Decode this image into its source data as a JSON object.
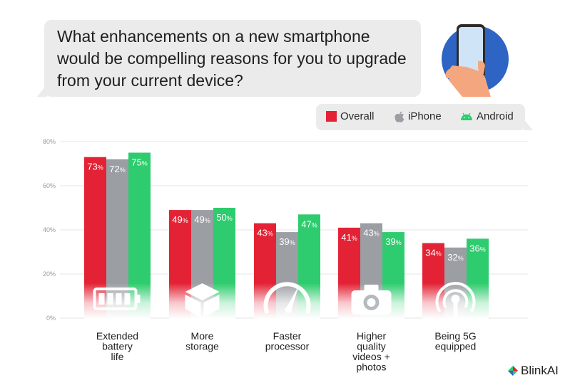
{
  "title": "What enhancements on a new smartphone would be compelling reasons for you to upgrade from your current device?",
  "legend": [
    {
      "label": "Overall",
      "color": "#e32335",
      "icon": "red-square-icon"
    },
    {
      "label": "iPhone",
      "color": "#9b9ea3",
      "icon": "apple-logo-icon"
    },
    {
      "label": "Android",
      "color": "#2ecc6e",
      "icon": "android-logo-icon"
    }
  ],
  "brand": {
    "name": "BlinkAI",
    "icon": "blinkai-logo-icon"
  },
  "chart_data": {
    "type": "bar",
    "categories": [
      "Extended battery life",
      "More storage",
      "Faster processor",
      "Higher quality videos + photos",
      "Being 5G equipped"
    ],
    "category_lines": [
      [
        "Extended",
        "battery",
        "life"
      ],
      [
        "More",
        "storage"
      ],
      [
        "Faster",
        "processor"
      ],
      [
        "Higher",
        "quality",
        "videos +",
        "photos"
      ],
      [
        "Being 5G",
        "equipped"
      ]
    ],
    "category_icons": [
      "battery-icon",
      "storage-box-icon",
      "speedometer-icon",
      "camera-icon",
      "5g-signal-icon"
    ],
    "series": [
      {
        "name": "Overall",
        "color": "#e32335",
        "values": [
          73,
          49,
          43,
          41,
          34
        ]
      },
      {
        "name": "iPhone",
        "color": "#9b9ea3",
        "values": [
          72,
          49,
          39,
          43,
          32
        ]
      },
      {
        "name": "Android",
        "color": "#2ecc6e",
        "values": [
          75,
          50,
          47,
          39,
          36
        ]
      }
    ],
    "value_suffix": "%",
    "yticks": [
      "0%",
      "20%",
      "40%",
      "60%",
      "80%"
    ],
    "ylim": [
      0,
      80
    ],
    "grid": true,
    "legend_position": "top-right"
  }
}
